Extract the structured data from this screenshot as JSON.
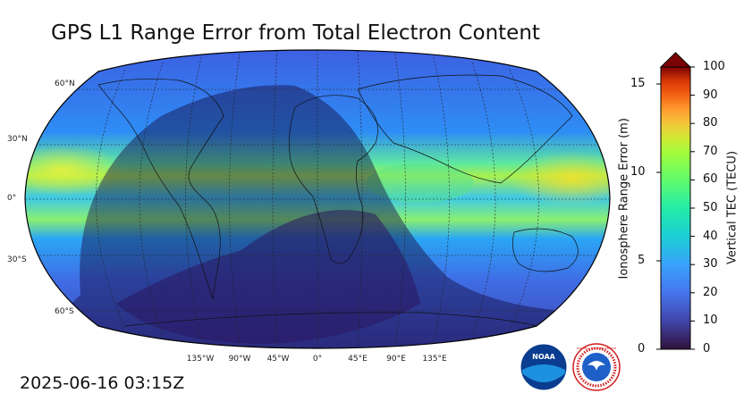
{
  "title": "GPS L1 Range Error from Total Electron Content",
  "timestamp": "2025-06-16 03:15Z",
  "map": {
    "projection": "robinson",
    "lat_labels": [
      "60°N",
      "30°N",
      "0°",
      "30°S",
      "60°S"
    ],
    "lon_labels": [
      "135°W",
      "90°W",
      "45°W",
      "0°",
      "45°E",
      "90°E",
      "135°E"
    ],
    "gridlines": "dashed",
    "night_shading": true
  },
  "colorbar": {
    "tec_label": "Vertical TEC (TECU)",
    "tec_ticks": [
      "0",
      "10",
      "20",
      "30",
      "40",
      "50",
      "60",
      "70",
      "80",
      "90",
      "100"
    ],
    "range_label": "Ionosphere Range Error (m)",
    "range_ticks": [
      "0",
      "5",
      "10",
      "15"
    ],
    "extend": "max",
    "colormap": "turbo"
  },
  "logos": {
    "noaa_text": "NOAA",
    "nws_text": "NATIONAL WEATHER SERVICE"
  },
  "colors": {
    "low": "#30123b",
    "mid": "#1ae4b6",
    "high": "#7a0403",
    "ocean_base": "#3a5fe0"
  }
}
